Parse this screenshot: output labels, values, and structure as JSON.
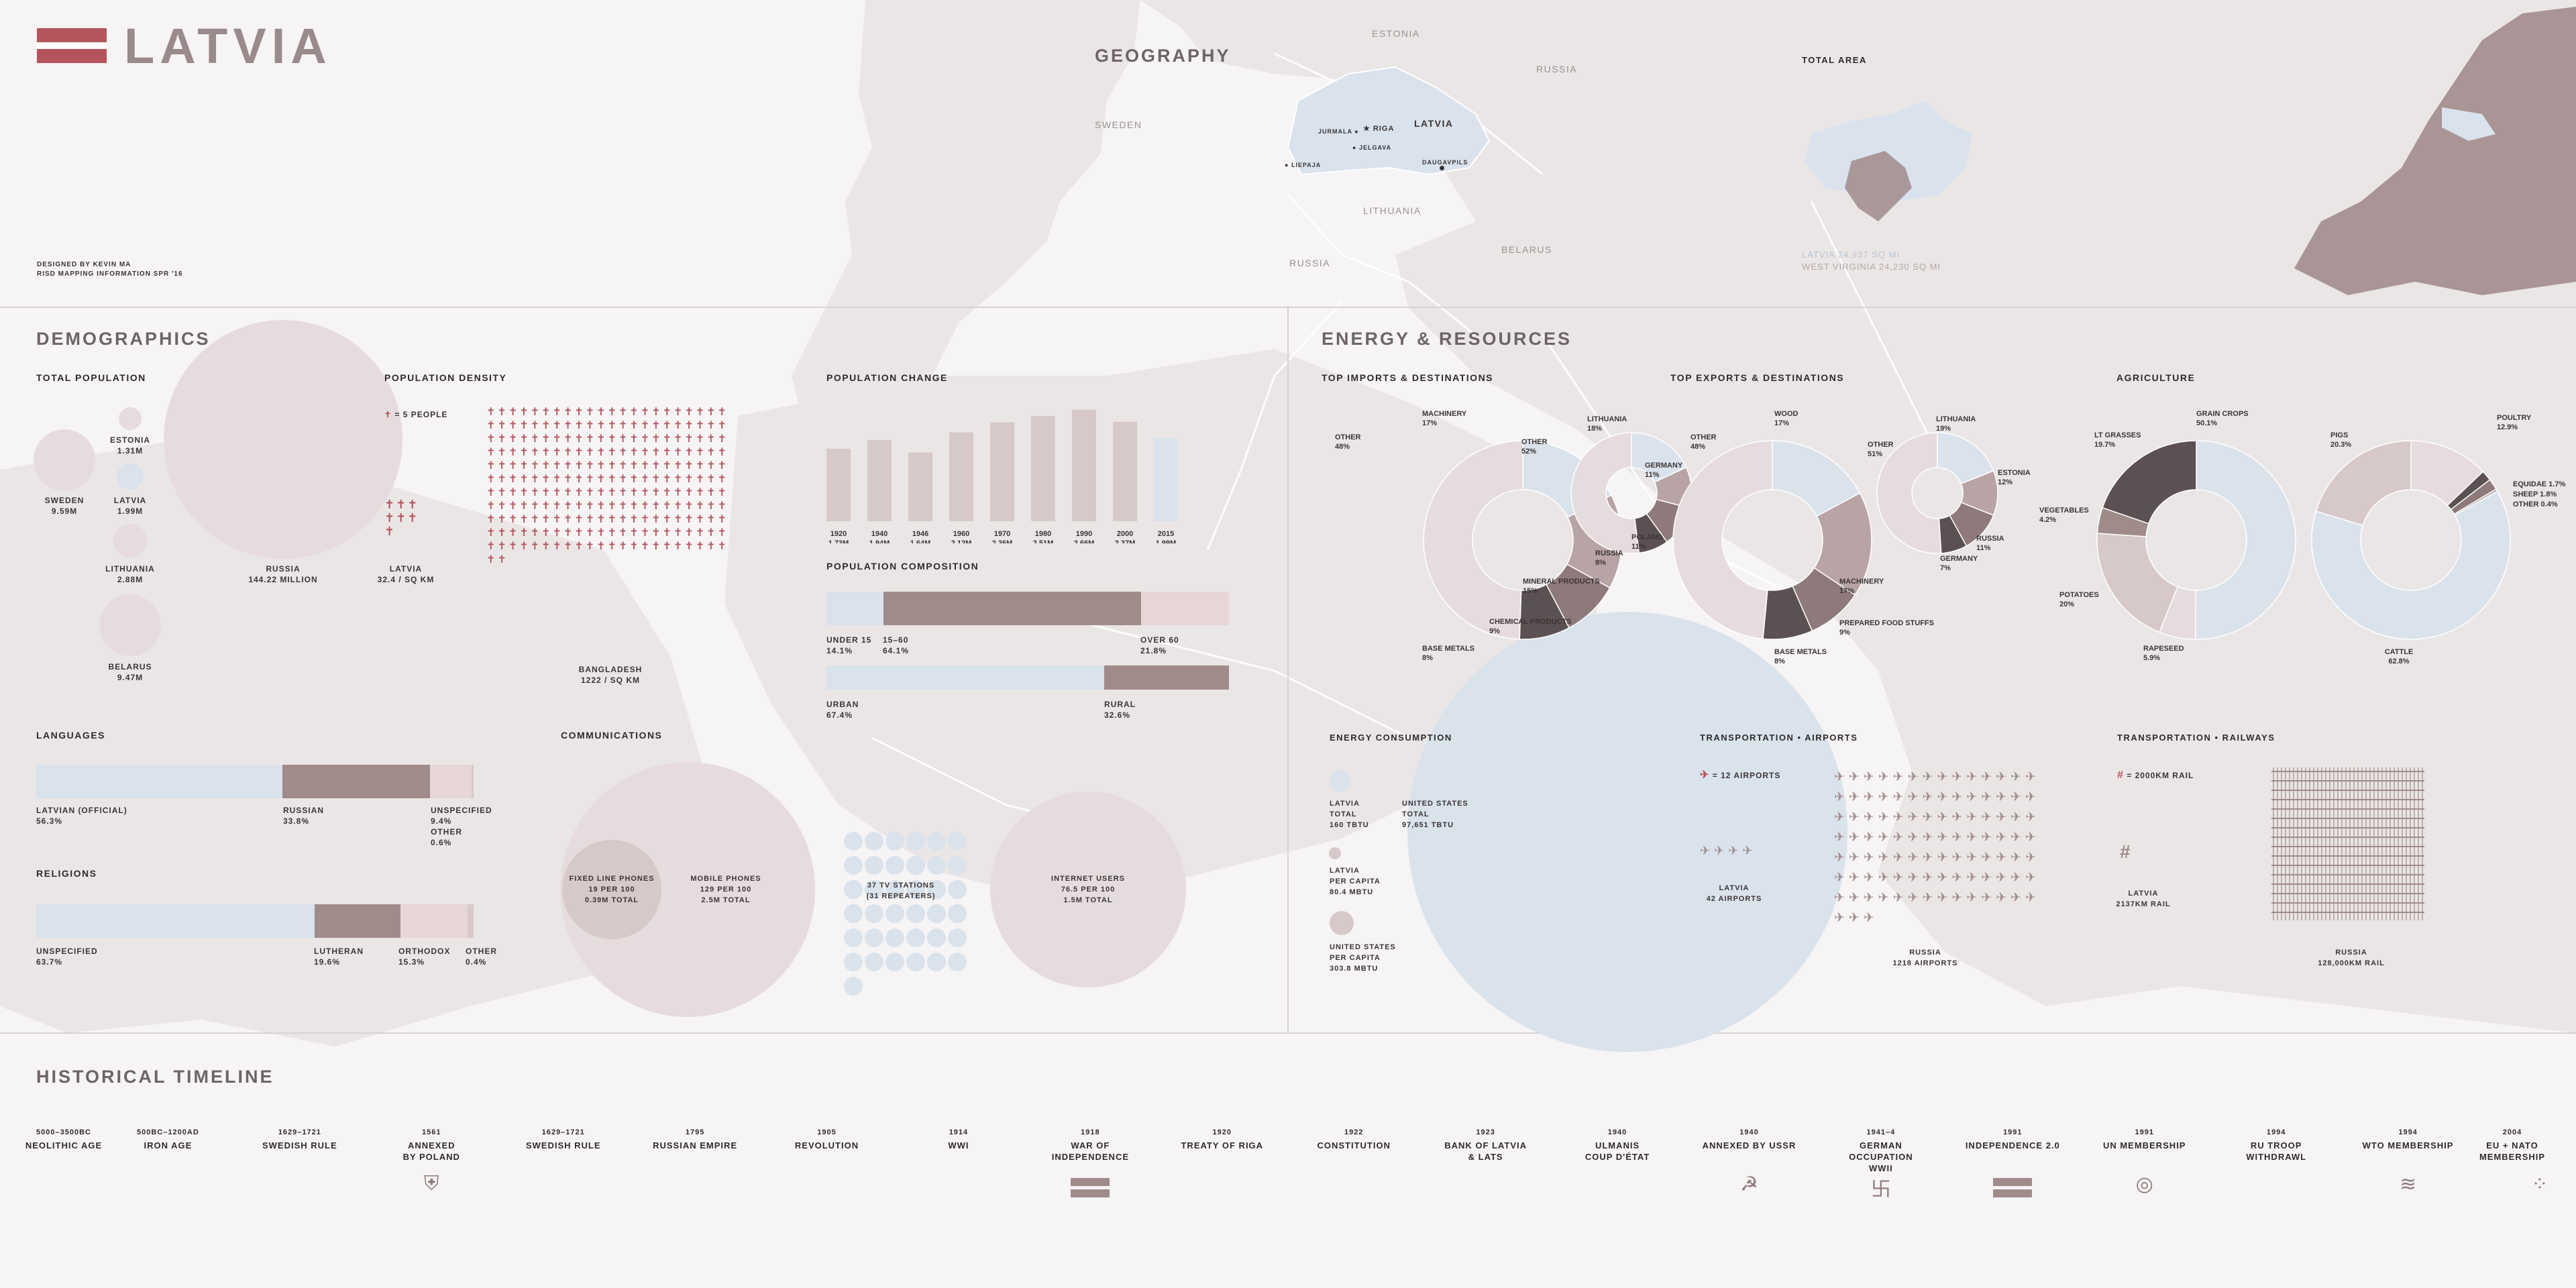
{
  "header": {
    "title": "LATVIA",
    "credit": "DESIGNED BY KEVIN MA\nRISD MAPPING INFORMATION SPR '16"
  },
  "colors": {
    "mauve": "#a08b8b",
    "light_mauve": "#d7c8ca",
    "pale": "#e6dcdd",
    "blue": "#dae2ec",
    "dark": "#5c5152",
    "accent": "#b4545c"
  },
  "geography": {
    "title": "GEOGRAPHY",
    "countries": [
      "ESTONIA",
      "RUSSIA",
      "SWEDEN",
      "LATVIA",
      "LITHUANIA",
      "BELARUS",
      "RUSSIA"
    ],
    "cities": [
      "JURMALA",
      "RIGA",
      "JELGAVA",
      "DAUGAVPILS",
      "LIEPAJA"
    ],
    "total_area_title": "TOTAL AREA",
    "area_latvia": "LATVIA 24,937 SQ MI",
    "area_wv": "WEST VIRGINIA 24,230 SQ MI"
  },
  "demographics": {
    "title": "DEMOGRAPHICS",
    "total_population": {
      "title": "TOTAL POPULATION",
      "items": [
        {
          "name": "SWEDEN",
          "value": "9.59M",
          "m": 9.59
        },
        {
          "name": "ESTONIA",
          "value": "1.31M",
          "m": 1.31
        },
        {
          "name": "LATVIA",
          "value": "1.99M",
          "m": 1.99
        },
        {
          "name": "LITHUANIA",
          "value": "2.88M",
          "m": 2.88
        },
        {
          "name": "BELARUS",
          "value": "9.47M",
          "m": 9.47
        },
        {
          "name": "RUSSIA",
          "value": "144.22 MILLION",
          "m": 144.22
        }
      ]
    },
    "population_density": {
      "title": "POPULATION DENSITY",
      "legend": "= 5 PEOPLE",
      "latvia": {
        "name": "LATVIA",
        "value": "32.4 / SQ KM"
      },
      "bangladesh": {
        "name": "BANGLADESH",
        "value": "1222 / SQ KM"
      }
    },
    "population_change": {
      "title": "POPULATION CHANGE"
    },
    "population_composition": {
      "title": "POPULATION COMPOSITION",
      "age": [
        {
          "name": "UNDER 15",
          "value": "14.1%"
        },
        {
          "name": "15–60",
          "value": "64.1%"
        },
        {
          "name": "OVER 60",
          "value": "21.8%"
        }
      ],
      "urban": [
        {
          "name": "URBAN",
          "value": "67.4%"
        },
        {
          "name": "RURAL",
          "value": "32.6%"
        }
      ]
    },
    "languages": {
      "title": "LANGUAGES",
      "items": [
        {
          "name": "LATVIAN (OFFICIAL)",
          "value": "56.3%"
        },
        {
          "name": "RUSSIAN",
          "value": "33.8%"
        },
        {
          "name": "UNSPECIFIED",
          "value": "9.4%"
        },
        {
          "name": "OTHER",
          "value": "0.6%"
        }
      ]
    },
    "religions": {
      "title": "RELIGIONS",
      "items": [
        {
          "name": "UNSPECIFIED",
          "value": "63.7%"
        },
        {
          "name": "LUTHERAN",
          "value": "19.6%"
        },
        {
          "name": "ORTHODOX",
          "value": "15.3%"
        },
        {
          "name": "OTHER",
          "value": "0.4%"
        }
      ]
    },
    "communications": {
      "title": "COMMUNICATIONS",
      "fixed": "FIXED LINE PHONES\n19 PER 100\n0.39M TOTAL",
      "mobile": "MOBILE PHONES\n129 PER 100\n2.5M TOTAL",
      "tv": "37 TV STATIONS\n(31 REPEATERS)",
      "internet": "INTERNET USERS\n76.5 PER 100\n1.5M TOTAL"
    }
  },
  "energy": {
    "title": "ENERGY & RESOURCES",
    "imports_title": "TOP IMPORTS & DESTINATIONS",
    "exports_title": "TOP EXPORTS & DESTINATIONS",
    "agriculture_title": "AGRICULTURE",
    "energy_consumption": {
      "title": "ENERGY CONSUMPTION",
      "latvia_total": "LATVIA\nTOTAL\n160 TBtu",
      "us_total": "UNITED STATES\nTOTAL\n97,651 TBtu",
      "latvia_pc": "LATVIA\nPER CAPITA\n80.4 MBtu",
      "us_pc": "UNITED STATES\nPER CAPITA\n303.8 MBtu"
    },
    "airports": {
      "title": "TRANSPORTATION • AIRPORTS",
      "legend": "= 12 AIRPORTS",
      "latvia": "LATVIA\n42 AIRPORTS",
      "russia": "RUSSIA\n1218 AIRPORTS"
    },
    "railways": {
      "title": "TRANSPORTATION • RAILWAYS",
      "legend": "= 2000KM RAIL",
      "latvia": "LATVIA\n2137KM RAIL",
      "russia": "RUSSIA\n128,000KM RAIL"
    }
  },
  "timeline": {
    "title": "HISTORICAL TIMELINE",
    "events": [
      {
        "year": "5000–3500BC",
        "label": "NEOLITHIC AGE"
      },
      {
        "year": "500BC–1200AD",
        "label": "IRON AGE"
      },
      {
        "year": "1629–1721",
        "label": "SWEDISH RULE"
      },
      {
        "year": "1561",
        "label": "ANNEXED\nBY POLAND",
        "icon": "shield-icon"
      },
      {
        "year": "1629–1721",
        "label": "SWEDISH RULE"
      },
      {
        "year": "1795",
        "label": "RUSSIAN EMPIRE"
      },
      {
        "year": "1905",
        "label": "REVOLUTION"
      },
      {
        "year": "1914",
        "label": "WWI"
      },
      {
        "year": "1918",
        "label": "WAR OF\nINDEPENDENCE",
        "icon": "latvian-flag-icon"
      },
      {
        "year": "1920",
        "label": "TREATY OF RIGA"
      },
      {
        "year": "1922",
        "label": "CONSTITUTION"
      },
      {
        "year": "1923",
        "label": "BANK OF LATVIA\n& LATS"
      },
      {
        "year": "1940",
        "label": "ULMANIS\nCOUP D'ÉTAT"
      },
      {
        "year": "1940",
        "label": "ANNEXED BY USSR",
        "icon": "hammer-sickle-icon"
      },
      {
        "year": "1941–4",
        "label": "GERMAN OCCUPATION\nWWII",
        "icon": "swastika-icon"
      },
      {
        "year": "1991",
        "label": "INDEPENDENCE 2.0",
        "icon": "latvian-flag-icon"
      },
      {
        "year": "1991",
        "label": "UN MEMBERSHIP",
        "icon": "un-emblem-icon"
      },
      {
        "year": "1994",
        "label": "RU TROOP WITHDRAWL"
      },
      {
        "year": "1994",
        "label": "WTO MEMBERSHIP",
        "icon": "wto-logo-icon"
      },
      {
        "year": "2004",
        "label": "EU + NATO\nMEMBERSHIP",
        "icon": "eu-stars-icon"
      }
    ]
  },
  "chart_data": [
    {
      "type": "bar",
      "title": "POPULATION CHANGE",
      "categories": [
        "1920",
        "1940",
        "1946",
        "1960",
        "1970",
        "1980",
        "1990",
        "2000",
        "2015"
      ],
      "values": [
        1.73,
        1.94,
        1.64,
        2.12,
        2.36,
        2.51,
        2.66,
        2.37,
        1.99
      ],
      "value_labels": [
        "1.73M",
        "1.94M",
        "1.64M",
        "2.12M",
        "2.36M",
        "2.51M",
        "2.66M",
        "2.37M",
        "1.99M"
      ]
    },
    {
      "type": "pie",
      "name": "imports",
      "labels": [
        "MACHINERY",
        "MINERAL PRODUCTS",
        "CHEMICAL PRODUCTS",
        "BASE METALS",
        "OTHER"
      ],
      "label_text": [
        "MACHINERY\n17%",
        "MINERAL PRODUCTS\n15%",
        "CHEMICAL PRODUCTS\n9%",
        "BASE METALS\n8%",
        "OTHER\n48%"
      ],
      "values": [
        17,
        15,
        9,
        8,
        48
      ]
    },
    {
      "type": "pie",
      "name": "import_destinations",
      "labels": [
        "LITHUANIA",
        "GERMANY",
        "POLAND",
        "RUSSIA",
        "OTHER"
      ],
      "label_text": [
        "LITHUANIA\n18%",
        "GERMANY\n11%",
        "POLAND\n11%",
        "RUSSIA\n8%",
        "OTHER\n52%"
      ],
      "values": [
        18,
        11,
        11,
        8,
        52
      ]
    },
    {
      "type": "pie",
      "name": "exports",
      "labels": [
        "WOOD",
        "MACHINERY",
        "PREPARED FOOD STUFFS",
        "BASE METALS",
        "OTHER"
      ],
      "label_text": [
        "WOOD\n17%",
        "MACHINERY\n17%",
        "PREPARED FOOD STUFFS\n9%",
        "BASE METALS\n8%",
        "OTHER\n48%"
      ],
      "values": [
        17,
        17,
        9,
        8,
        48
      ]
    },
    {
      "type": "pie",
      "name": "export_destinations",
      "labels": [
        "LITHUANIA",
        "ESTONIA",
        "RUSSIA",
        "GERMANY",
        "OTHER"
      ],
      "label_text": [
        "LITHUANIA\n19%",
        "ESTONIA\n12%",
        "RUSSIA\n11%",
        "GERMANY\n7%",
        "OTHER\n51%"
      ],
      "values": [
        19,
        12,
        11,
        7,
        51
      ]
    },
    {
      "type": "pie",
      "name": "agriculture_crops",
      "labels": [
        "GRAIN CROPS",
        "RAPESEED",
        "POTATOES",
        "VEGETABLES",
        "LT GRASSES"
      ],
      "label_text": [
        "GRAIN CROPS\n50.1%",
        "RAPESEED\n5.9%",
        "POTATOES\n20%",
        "VEGETABLES\n4.2%",
        "LT GRASSES\n19.7%"
      ],
      "values": [
        50.1,
        5.9,
        20,
        4.2,
        19.7
      ]
    },
    {
      "type": "pie",
      "name": "agriculture_livestock",
      "labels": [
        "POULTRY",
        "EQUIDAE",
        "SHEEP",
        "OTHER",
        "CATTLE",
        "PIGS"
      ],
      "label_text": [
        "POULTRY\n12.9%",
        "EQUIDAE 1.7%",
        "SHEEP 1.8%",
        "OTHER 0.4%",
        "CATTLE\n62.8%",
        "PIGS\n20.3%"
      ],
      "values": [
        12.9,
        1.7,
        1.8,
        0.4,
        62.8,
        20.3
      ]
    }
  ]
}
